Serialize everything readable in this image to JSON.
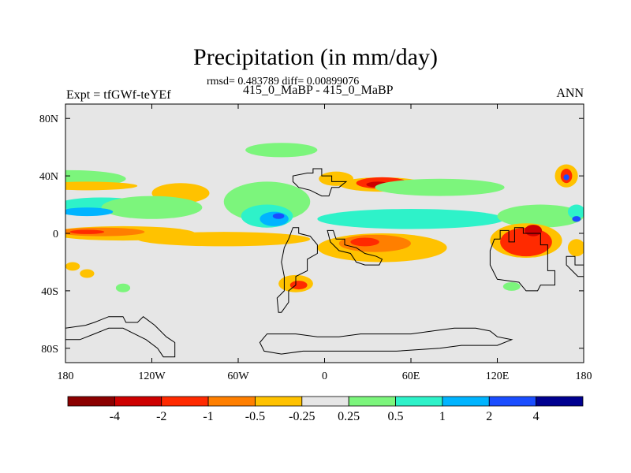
{
  "title": "Precipitation (in mm/day)",
  "stats": "rmsd= 0.483789 diff= 0.00899076",
  "subtitle": "415_0_MaBP - 415_0_MaBP",
  "left_label": "Expt = tfGWf-teYEf",
  "right_label": "ANN",
  "map": {
    "lon_range": [
      -180,
      180
    ],
    "lat_range": [
      -90,
      90
    ],
    "background_color": "#e6e6e6",
    "x_ticks": [
      {
        "value": -180,
        "label": "180"
      },
      {
        "value": -120,
        "label": "120W"
      },
      {
        "value": -60,
        "label": "60W"
      },
      {
        "value": 0,
        "label": "0"
      },
      {
        "value": 60,
        "label": "60E"
      },
      {
        "value": 120,
        "label": "120E"
      },
      {
        "value": 180,
        "label": "180"
      }
    ],
    "y_ticks": [
      {
        "value": 80,
        "label": "80N"
      },
      {
        "value": 40,
        "label": "40N"
      },
      {
        "value": 0,
        "label": "0"
      },
      {
        "value": -40,
        "label": "40S"
      },
      {
        "value": -80,
        "label": "80S"
      }
    ]
  },
  "colorbar": {
    "colors": [
      "#8b0000",
      "#cd0000",
      "#ff2a00",
      "#ff7f00",
      "#ffc200",
      "#e6e6e6",
      "#7cf57c",
      "#2ef2c9",
      "#00b4ff",
      "#1a4dff",
      "#000090"
    ],
    "labels": [
      "-4",
      "-2",
      "-1",
      "-0.5",
      "-0.25",
      "0.25",
      "0.5",
      "1",
      "2",
      "4"
    ]
  },
  "regions": [
    {
      "name": "nh-midlat-green-band",
      "color": "#7cf57c",
      "lon": -178,
      "lat": 38,
      "rlon": 40,
      "rlat": 6
    },
    {
      "name": "nh-midlat-orange-band",
      "color": "#ffc200",
      "lon": -165,
      "lat": 33,
      "rlon": 35,
      "rlat": 3
    },
    {
      "name": "n-pacific-orange-patch",
      "color": "#ffc200",
      "lon": -100,
      "lat": 28,
      "rlon": 20,
      "rlat": 7
    },
    {
      "name": "n-pacific-cyan-band",
      "color": "#2ef2c9",
      "lon": -155,
      "lat": 20,
      "rlon": 30,
      "rlat": 5
    },
    {
      "name": "n-pacific-green-patch",
      "color": "#7cf57c",
      "lon": -120,
      "lat": 18,
      "rlon": 35,
      "rlat": 8
    },
    {
      "name": "pacific-blue-band",
      "color": "#00b4ff",
      "lon": -165,
      "lat": 15,
      "rlon": 18,
      "rlat": 3
    },
    {
      "name": "arctic-green-patch",
      "color": "#7cf57c",
      "lon": -30,
      "lat": 58,
      "rlon": 25,
      "rlat": 5
    },
    {
      "name": "atlantic-green-patch",
      "color": "#7cf57c",
      "lon": -40,
      "lat": 22,
      "rlon": 30,
      "rlat": 14
    },
    {
      "name": "atlantic-cyan-patch",
      "color": "#2ef2c9",
      "lon": -40,
      "lat": 12,
      "rlon": 18,
      "rlat": 8
    },
    {
      "name": "atlantic-blue-patch",
      "color": "#00b4ff",
      "lon": -35,
      "lat": 10,
      "rlon": 10,
      "rlat": 5
    },
    {
      "name": "atlantic-darkblue-core",
      "color": "#1a4dff",
      "lon": -32,
      "lat": 12,
      "rlon": 4,
      "rlat": 2
    },
    {
      "name": "n-atlantic-orange-patch",
      "color": "#ffc200",
      "lon": 8,
      "lat": 38,
      "rlon": 12,
      "rlat": 5
    },
    {
      "name": "mideast-orange-band",
      "color": "#ffc200",
      "lon": 40,
      "lat": 34,
      "rlon": 30,
      "rlat": 5
    },
    {
      "name": "mideast-red-band",
      "color": "#ff2a00",
      "lon": 40,
      "lat": 35,
      "rlon": 18,
      "rlat": 4
    },
    {
      "name": "mideast-darkred-core",
      "color": "#cd0000",
      "lon": 37,
      "lat": 34,
      "rlon": 8,
      "rlat": 2
    },
    {
      "name": "indian-green-band",
      "color": "#7cf57c",
      "lon": 80,
      "lat": 32,
      "rlon": 45,
      "rlat": 6
    },
    {
      "name": "indian-cyan-band",
      "color": "#2ef2c9",
      "lon": 60,
      "lat": 10,
      "rlon": 65,
      "rlat": 7
    },
    {
      "name": "w-pacific-green-band",
      "color": "#7cf57c",
      "lon": 150,
      "lat": 12,
      "rlon": 30,
      "rlat": 8
    },
    {
      "name": "nw-pacific-orange-patch",
      "color": "#ffc200",
      "lon": 168,
      "lat": 40,
      "rlon": 8,
      "rlat": 8
    },
    {
      "name": "nw-pacific-red-patch",
      "color": "#ff2a00",
      "lon": 168,
      "lat": 40,
      "rlon": 4,
      "rlat": 5
    },
    {
      "name": "nw-pacific-blue-core",
      "color": "#1a4dff",
      "lon": 168,
      "lat": 39,
      "rlon": 2,
      "rlat": 2
    },
    {
      "name": "tropical-orange-band",
      "color": "#ffc200",
      "lon": -140,
      "lat": 0,
      "rlon": 50,
      "rlat": 5
    },
    {
      "name": "tropical-red-band",
      "color": "#ff7f00",
      "lon": -155,
      "lat": 1,
      "rlon": 30,
      "rlat": 3
    },
    {
      "name": "tropical-red-core",
      "color": "#ff2a00",
      "lon": -165,
      "lat": 1,
      "rlon": 12,
      "rlat": 1.5
    },
    {
      "name": "south-equatorial-orange-band",
      "color": "#ffc200",
      "lon": -70,
      "lat": -4,
      "rlon": 60,
      "rlat": 5
    },
    {
      "name": "s-atlantic-orange-patch",
      "color": "#ffc200",
      "lon": -20,
      "lat": -35,
      "rlon": 12,
      "rlat": 6
    },
    {
      "name": "s-atlantic-red-patch",
      "color": "#ff2a00",
      "lon": -18,
      "lat": -36,
      "rlon": 6,
      "rlat": 3
    },
    {
      "name": "africa-orange-band",
      "color": "#ffc200",
      "lon": 40,
      "lat": -10,
      "rlon": 45,
      "rlat": 10
    },
    {
      "name": "africa-red-band",
      "color": "#ff7f00",
      "lon": 35,
      "lat": -7,
      "rlon": 25,
      "rlat": 6
    },
    {
      "name": "africa-red-core",
      "color": "#ff2a00",
      "lon": 28,
      "lat": -6,
      "rlon": 10,
      "rlat": 3
    },
    {
      "name": "maritime-orange-patch",
      "color": "#ffc200",
      "lon": 140,
      "lat": -5,
      "rlon": 25,
      "rlat": 12
    },
    {
      "name": "maritime-red-patch",
      "color": "#ff2a00",
      "lon": 140,
      "lat": -6,
      "rlon": 18,
      "rlat": 10
    },
    {
      "name": "maritime-darkred-core",
      "color": "#cd0000",
      "lon": 145,
      "lat": 2,
      "rlon": 6,
      "rlat": 4
    },
    {
      "name": "s-pacific-orange-patch",
      "color": "#ffc200",
      "lon": -175,
      "lat": -23,
      "rlon": 5,
      "rlat": 3
    },
    {
      "name": "s-pacific-orange-patch-2",
      "color": "#ffc200",
      "lon": -165,
      "lat": -28,
      "rlon": 5,
      "rlat": 3
    },
    {
      "name": "s-pacific-green-patch",
      "color": "#7cf57c",
      "lon": -140,
      "lat": -38,
      "rlon": 5,
      "rlat": 3
    },
    {
      "name": "s-indian-green-patch",
      "color": "#7cf57c",
      "lon": 130,
      "lat": -37,
      "rlon": 6,
      "rlat": 3
    },
    {
      "name": "far-east-cyan-patch",
      "color": "#2ef2c9",
      "lon": 175,
      "lat": 15,
      "rlon": 6,
      "rlat": 5
    },
    {
      "name": "far-east-blue-core",
      "color": "#1a4dff",
      "lon": 175,
      "lat": 10,
      "rlon": 3,
      "rlat": 2
    },
    {
      "name": "se-pacific-orange-patch",
      "color": "#ffc200",
      "lon": 175,
      "lat": -10,
      "rlon": 6,
      "rlat": 6
    }
  ],
  "continents": [
    {
      "name": "north-america",
      "points": [
        [
          -12,
          42
        ],
        [
          -8,
          42
        ],
        [
          -8,
          45
        ],
        [
          -2,
          45
        ],
        [
          -2,
          40
        ],
        [
          5,
          40
        ],
        [
          5,
          36
        ],
        [
          15,
          36
        ],
        [
          10,
          32
        ],
        [
          5,
          32
        ],
        [
          3,
          26
        ],
        [
          -2,
          26
        ],
        [
          -10,
          30
        ],
        [
          -18,
          32
        ],
        [
          -22,
          36
        ],
        [
          -22,
          40
        ]
      ]
    },
    {
      "name": "south-america",
      "points": [
        [
          -22,
          4
        ],
        [
          -18,
          4
        ],
        [
          -18,
          0
        ],
        [
          -10,
          -2
        ],
        [
          -5,
          -8
        ],
        [
          -5,
          -14
        ],
        [
          -12,
          -18
        ],
        [
          -12,
          -26
        ],
        [
          -20,
          -30
        ],
        [
          -20,
          -36
        ],
        [
          -25,
          -40
        ],
        [
          -25,
          -48
        ],
        [
          -30,
          -55
        ],
        [
          -32,
          -55
        ],
        [
          -33,
          -45
        ],
        [
          -28,
          -40
        ],
        [
          -28,
          -30
        ],
        [
          -30,
          -20
        ],
        [
          -28,
          -10
        ],
        [
          -25,
          -4
        ]
      ]
    },
    {
      "name": "africa-eurasia-block",
      "points": [
        [
          2,
          2
        ],
        [
          6,
          2
        ],
        [
          8,
          -4
        ],
        [
          14,
          -4
        ],
        [
          14,
          -8
        ],
        [
          22,
          -10
        ],
        [
          28,
          -14
        ],
        [
          36,
          -16
        ],
        [
          40,
          -18
        ],
        [
          38,
          -22
        ],
        [
          28,
          -22
        ],
        [
          22,
          -20
        ],
        [
          18,
          -14
        ],
        [
          10,
          -12
        ],
        [
          4,
          -6
        ]
      ]
    },
    {
      "name": "asia-south",
      "points": [
        [
          118,
          -4
        ],
        [
          122,
          -4
        ],
        [
          122,
          2
        ],
        [
          128,
          2
        ],
        [
          128,
          -6
        ],
        [
          132,
          -6
        ],
        [
          132,
          4
        ],
        [
          138,
          4
        ],
        [
          138,
          0
        ],
        [
          150,
          0
        ],
        [
          150,
          -8
        ],
        [
          155,
          -8
        ],
        [
          155,
          -26
        ],
        [
          160,
          -26
        ],
        [
          160,
          -36
        ],
        [
          150,
          -36
        ],
        [
          148,
          -40
        ],
        [
          140,
          -40
        ],
        [
          135,
          -34
        ],
        [
          120,
          -32
        ],
        [
          118,
          -28
        ],
        [
          115,
          -22
        ],
        [
          115,
          -12
        ]
      ]
    },
    {
      "name": "antarctica",
      "points": [
        [
          -150,
          -58
        ],
        [
          -140,
          -58
        ],
        [
          -138,
          -62
        ],
        [
          -130,
          -62
        ],
        [
          -126,
          -58
        ],
        [
          -118,
          -64
        ],
        [
          -110,
          -72
        ],
        [
          -104,
          -76
        ],
        [
          -104,
          -86
        ],
        [
          -112,
          -86
        ],
        [
          -116,
          -80
        ],
        [
          -124,
          -74
        ],
        [
          -132,
          -70
        ],
        [
          -140,
          -66
        ],
        [
          -150,
          -66
        ],
        [
          -160,
          -70
        ],
        [
          -170,
          -74
        ],
        [
          -180,
          -74
        ],
        [
          -180,
          -66
        ],
        [
          -166,
          -64
        ],
        [
          -160,
          -62
        ]
      ]
    },
    {
      "name": "antarctica-east",
      "points": [
        [
          -40,
          -70
        ],
        [
          -20,
          -70
        ],
        [
          -5,
          -72
        ],
        [
          10,
          -72
        ],
        [
          25,
          -70
        ],
        [
          40,
          -70
        ],
        [
          60,
          -70
        ],
        [
          75,
          -68
        ],
        [
          90,
          -66
        ],
        [
          105,
          -66
        ],
        [
          115,
          -68
        ],
        [
          120,
          -72
        ],
        [
          130,
          -74
        ],
        [
          120,
          -78
        ],
        [
          95,
          -78
        ],
        [
          80,
          -80
        ],
        [
          50,
          -82
        ],
        [
          25,
          -82
        ],
        [
          5,
          -82
        ],
        [
          -15,
          -82
        ],
        [
          -30,
          -84
        ],
        [
          -42,
          -82
        ],
        [
          -45,
          -76
        ]
      ]
    },
    {
      "name": "far-east-coast",
      "points": [
        [
          168,
          -16
        ],
        [
          174,
          -16
        ],
        [
          174,
          -22
        ],
        [
          180,
          -22
        ],
        [
          180,
          -30
        ],
        [
          176,
          -30
        ],
        [
          172,
          -26
        ],
        [
          168,
          -22
        ]
      ]
    }
  ]
}
